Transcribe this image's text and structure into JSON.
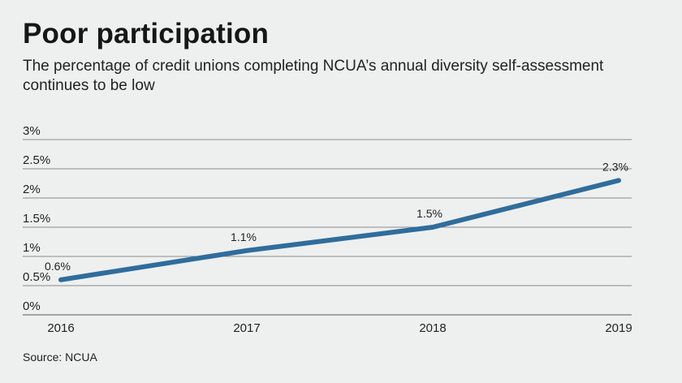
{
  "title": "Poor participation",
  "subtitle": "The percentage of credit unions completing NCUA’s annual diversity self-assessment continues to be low",
  "source": "Source: NCUA",
  "colors": {
    "background": "#eef0ef",
    "line": "#2f6d9c",
    "grid": "#8a8a8a"
  },
  "chart_data": {
    "type": "line",
    "x": [
      "2016",
      "2017",
      "2018",
      "2019"
    ],
    "series": [
      {
        "values": [
          0.6,
          1.1,
          1.5,
          2.3
        ],
        "labels": [
          "0.6%",
          "1.1%",
          "1.5%",
          "2.3%"
        ]
      }
    ],
    "y_ticks": [
      0,
      0.5,
      1,
      1.5,
      2,
      2.5,
      3
    ],
    "y_tick_labels": [
      "0%",
      "0.5%",
      "1%",
      "1.5%",
      "2%",
      "2.5%",
      "3%"
    ],
    "ylim": [
      0,
      3
    ],
    "grid": true,
    "legend": "none"
  }
}
